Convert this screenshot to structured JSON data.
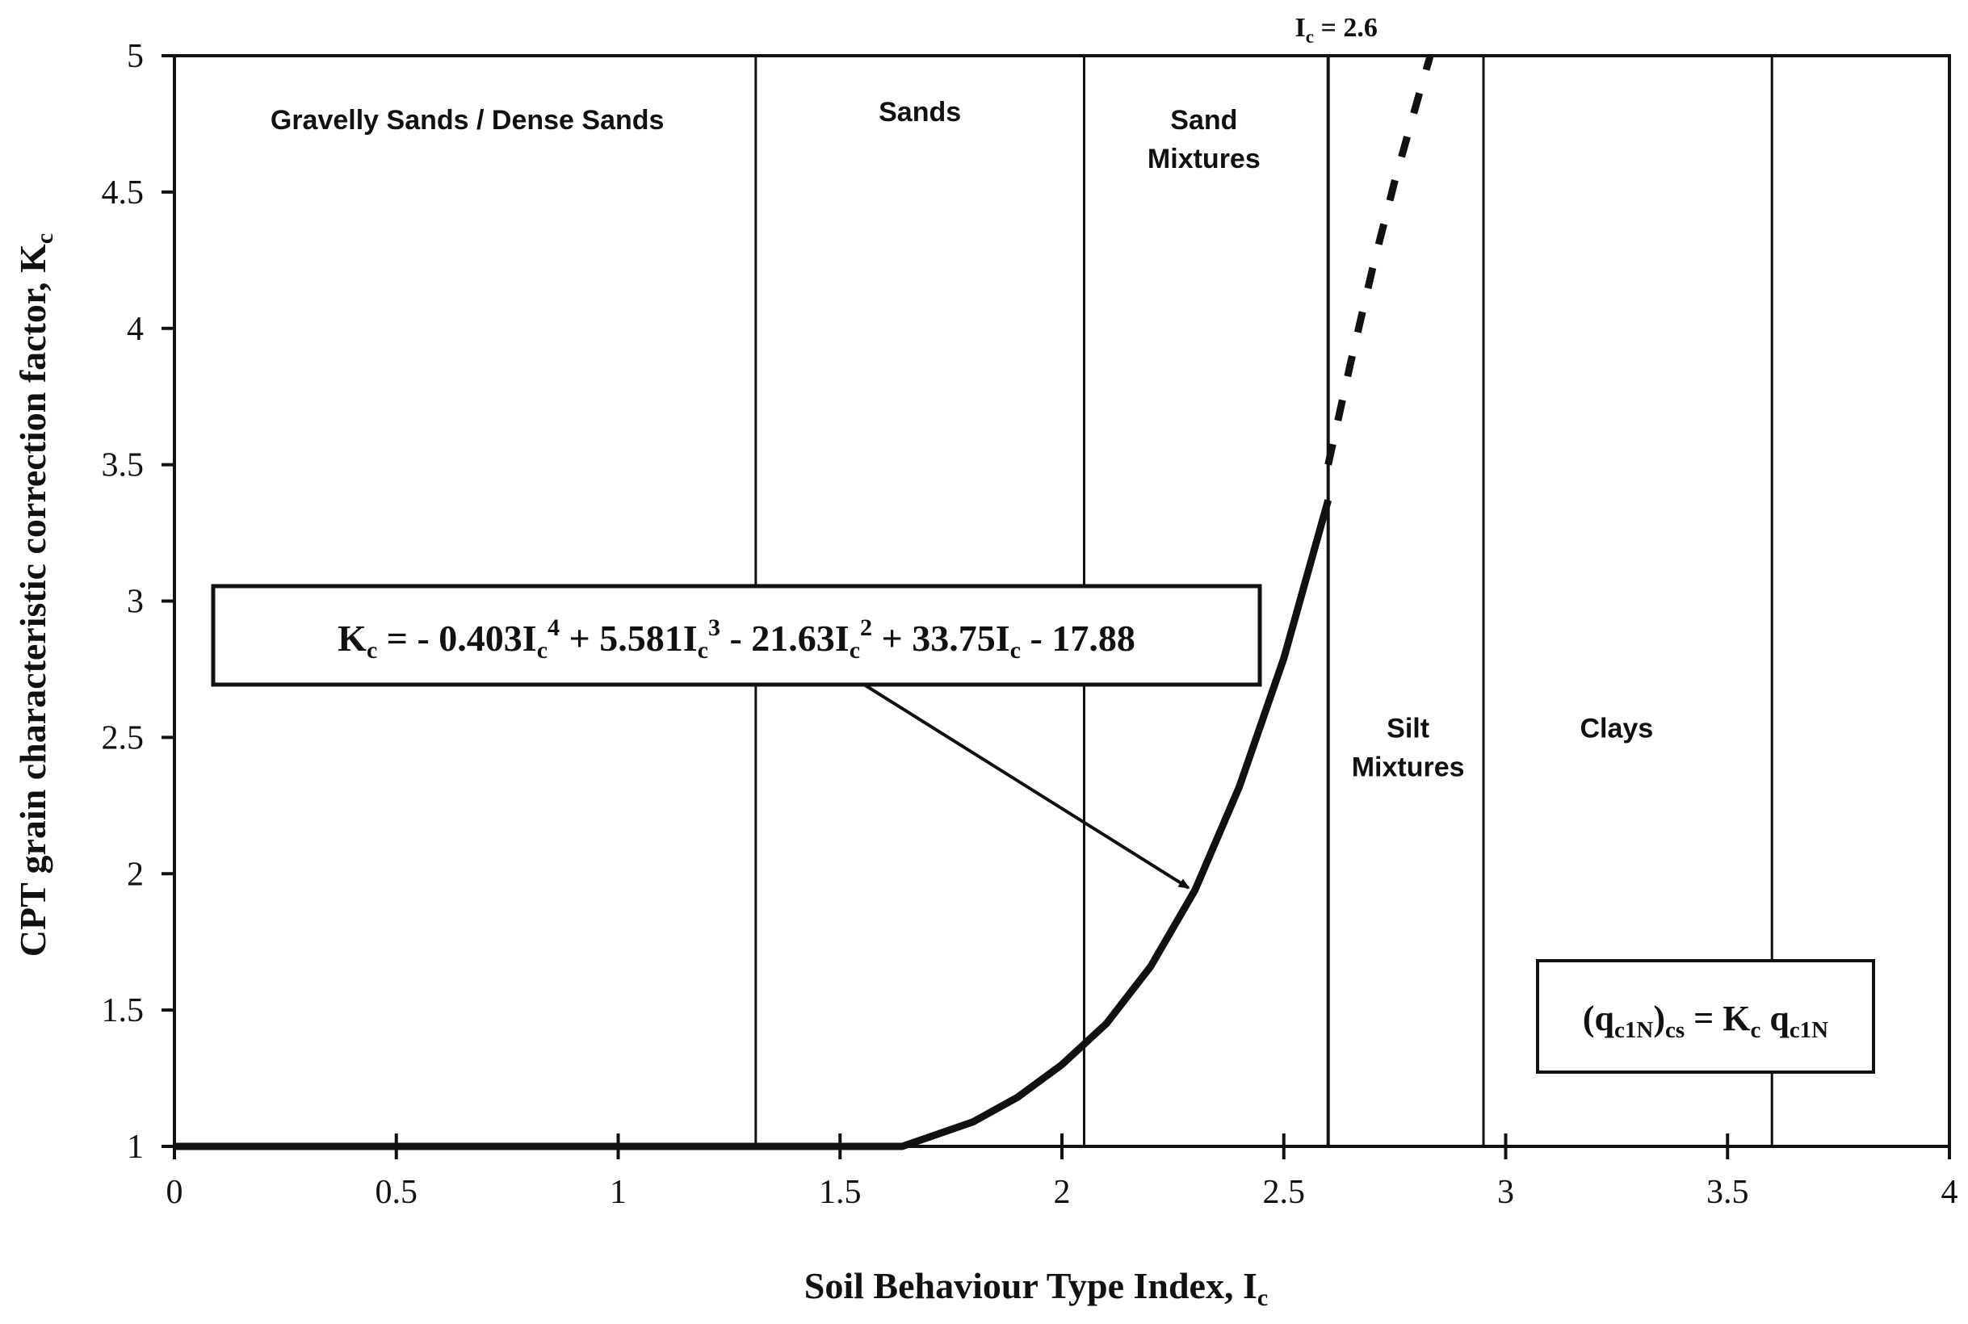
{
  "chart_data": {
    "type": "line",
    "xlabel": "Soil Behaviour Type Index, I",
    "xlabel_sub": "c",
    "ylabel": "CPT grain characteristic correction factor, K",
    "ylabel_sub": "c",
    "xlim": [
      0,
      4
    ],
    "ylim": [
      1,
      5
    ],
    "x_ticks": [
      0,
      0.5,
      1,
      1.5,
      2,
      2.5,
      3,
      3.5,
      4
    ],
    "x_tick_labels": [
      "0",
      "0.5",
      "1",
      "1.5",
      "2",
      "2.5",
      "3",
      "3.5",
      "4"
    ],
    "y_ticks": [
      1,
      1.5,
      2,
      2.5,
      3,
      3.5,
      4,
      4.5,
      5
    ],
    "y_tick_labels": [
      "1",
      "1.5",
      "2",
      "2.5",
      "3",
      "3.5",
      "4",
      "4.5",
      "5"
    ],
    "grid": false,
    "zone_boundaries": [
      1.31,
      2.05,
      2.6,
      2.95,
      3.6
    ],
    "zones": [
      {
        "line1": "Gravelly Sands / Dense Sands",
        "line2": "",
        "x": 0.66,
        "y": 4.73
      },
      {
        "line1": "Sands",
        "line2": "",
        "x": 1.68,
        "y": 4.76
      },
      {
        "line1": "Sand",
        "line2": "Mixtures",
        "x": 2.32,
        "y": 4.73
      },
      {
        "line1": "Silt",
        "line2": "Mixtures",
        "x": 2.78,
        "y": 2.5
      },
      {
        "line1": "Clays",
        "line2": "",
        "x": 3.25,
        "y": 2.5
      }
    ],
    "series": [
      {
        "style": "solid",
        "x": [
          0,
          1.64,
          1.8,
          1.9,
          2.0,
          2.1,
          2.2,
          2.3,
          2.4,
          2.5,
          2.6
        ],
        "y": [
          1.0,
          1.0,
          1.09,
          1.18,
          1.3,
          1.45,
          1.66,
          1.94,
          2.32,
          2.79,
          3.37
        ]
      },
      {
        "style": "dashed",
        "x": [
          2.6,
          2.65,
          2.7,
          2.75,
          2.8,
          2.83
        ],
        "y": [
          3.5,
          3.87,
          4.22,
          4.54,
          4.83,
          5.0
        ]
      }
    ],
    "annotations": {
      "ic_label": "I",
      "ic_sub": "c",
      "ic_value": " = 2.6",
      "ic_x": 2.6
    },
    "equation_box": {
      "kc_base": "K",
      "kc_sub": "c",
      "eq_part1": " = - 0.403I",
      "sub1": "c",
      "sup1": "4",
      "eq_part2": " + 5.581I",
      "sub2": "c",
      "sup2": "3",
      "eq_part3": " - 21.63I",
      "sub3": "c",
      "sup3": "2",
      "eq_part4": " + 33.75I",
      "sub4": "c",
      "eq_part5": " - 17.88",
      "arrow_to": [
        2.3,
        1.96
      ]
    },
    "relation_box": {
      "open": "(q",
      "sub_q": "c1N",
      "close": ")",
      "sub_cs": "cs",
      "mid": " = K",
      "sub_k": "c",
      "q2": " q",
      "sub_q2": "c1N"
    }
  }
}
